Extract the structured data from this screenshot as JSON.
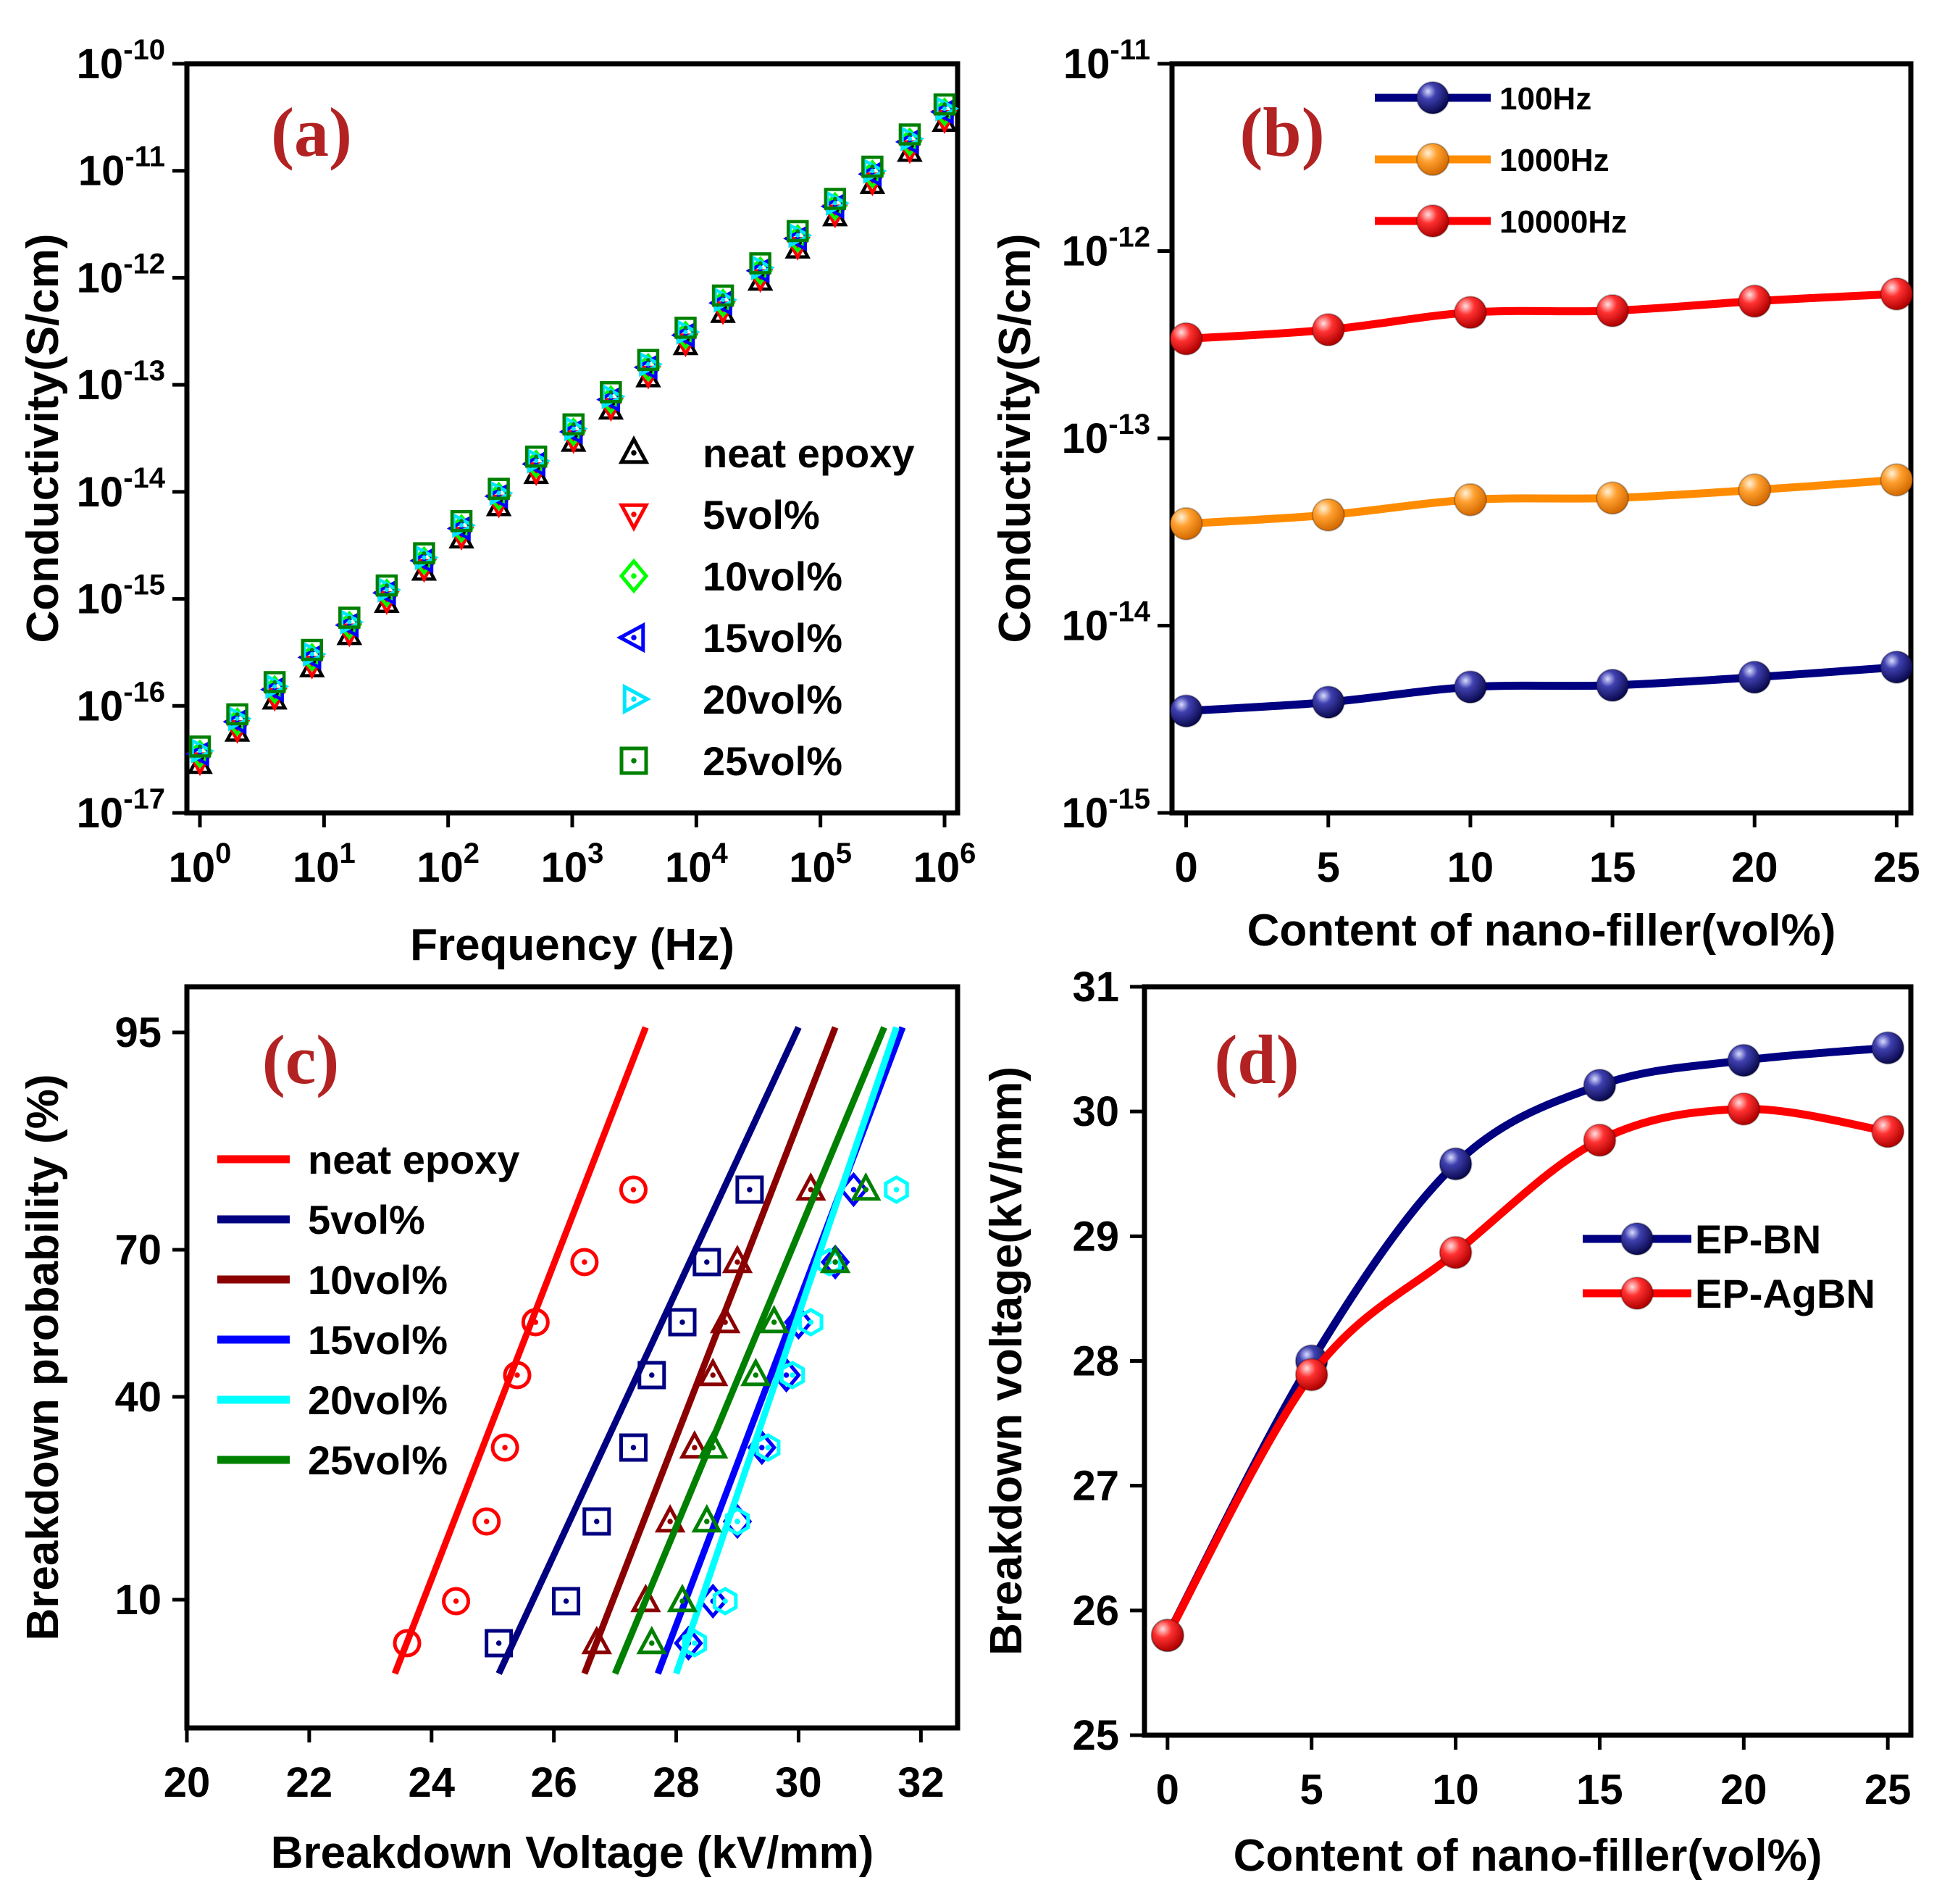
{
  "chart_data": [
    {
      "type": "scatter",
      "panel_label": "(a)",
      "xlabel": "Frequency (Hz)",
      "ylabel": "Conductivity(S/cm)",
      "xscale": "log",
      "yscale": "log",
      "xlim": [
        1,
        1000000
      ],
      "ylim": [
        1e-17,
        1e-10
      ],
      "xticks": [
        {
          "base": "10",
          "exp": "0"
        },
        {
          "base": "10",
          "exp": "1"
        },
        {
          "base": "10",
          "exp": "2"
        },
        {
          "base": "10",
          "exp": "3"
        },
        {
          "base": "10",
          "exp": "4"
        },
        {
          "base": "10",
          "exp": "5"
        },
        {
          "base": "10",
          "exp": "6"
        }
      ],
      "yticks": [
        {
          "base": "10",
          "exp": "-10"
        },
        {
          "base": "10",
          "exp": "-11"
        },
        {
          "base": "10",
          "exp": "-12"
        },
        {
          "base": "10",
          "exp": "-13"
        },
        {
          "base": "10",
          "exp": "-14"
        },
        {
          "base": "10",
          "exp": "-15"
        },
        {
          "base": "10",
          "exp": "-16"
        },
        {
          "base": "10",
          "exp": "-17"
        }
      ],
      "legend_position": "right",
      "x": [
        1,
        2,
        4,
        8,
        16,
        32,
        64,
        128,
        256,
        512,
        1024,
        2048,
        4096,
        8192,
        16384,
        32768,
        65536,
        131072,
        262144,
        524288,
        1000000
      ],
      "series": [
        {
          "name": "neat epoxy",
          "marker": "triangle-up",
          "color": "#000000",
          "log10_sigma_at_1Hz": -16.55
        },
        {
          "name": "5vol%",
          "marker": "triangle-down",
          "color": "#ff0000",
          "log10_sigma_at_1Hz": -16.52
        },
        {
          "name": "10vol%",
          "marker": "diamond",
          "color": "#00ff00",
          "log10_sigma_at_1Hz": -16.45
        },
        {
          "name": "15vol%",
          "marker": "triangle-left",
          "color": "#0000ff",
          "log10_sigma_at_1Hz": -16.45
        },
        {
          "name": "20vol%",
          "marker": "triangle-right",
          "color": "#00e5ff",
          "log10_sigma_at_1Hz": -16.42
        },
        {
          "name": "25vol%",
          "marker": "square",
          "color": "#008000",
          "log10_sigma_at_1Hz": -16.38
        }
      ],
      "note_slope": 1.0
    },
    {
      "type": "line",
      "panel_label": "(b)",
      "xlabel": "Content of nano-filler(vol%)",
      "ylabel": "Conductivity(S/cm)",
      "yscale": "log",
      "xlim": [
        -0.5,
        25.5
      ],
      "ylim": [
        1e-15,
        1e-11
      ],
      "xticks": [
        "0",
        "5",
        "10",
        "15",
        "20",
        "25"
      ],
      "yticks": [
        {
          "base": "10",
          "exp": "-11"
        },
        {
          "base": "10",
          "exp": "-12"
        },
        {
          "base": "10",
          "exp": "-13"
        },
        {
          "base": "10",
          "exp": "-14"
        },
        {
          "base": "10",
          "exp": "-15"
        }
      ],
      "legend_position": "top-left",
      "x": [
        0,
        5,
        10,
        15,
        20,
        25
      ],
      "series": [
        {
          "name": "100Hz",
          "color": "#000080",
          "values": [
            3.5e-15,
            3.9e-15,
            4.7e-15,
            4.8e-15,
            5.3e-15,
            6e-15
          ]
        },
        {
          "name": "1000Hz",
          "color": "#ff8c00",
          "values": [
            3.5e-14,
            3.9e-14,
            4.7e-14,
            4.8e-14,
            5.3e-14,
            6e-14
          ]
        },
        {
          "name": "10000Hz",
          "color": "#ff0000",
          "values": [
            3.4e-13,
            3.8e-13,
            4.7e-13,
            4.8e-13,
            5.4e-13,
            5.9e-13
          ]
        }
      ]
    },
    {
      "type": "scatter",
      "panel_label": "(c)",
      "xlabel": "Breakdown Voltage (kV/mm)",
      "ylabel": "Breakdown probability (%)",
      "xlim": [
        20,
        32.6
      ],
      "xticks": [
        "20",
        "22",
        "24",
        "26",
        "28",
        "30",
        "32"
      ],
      "yticks": [
        "95",
        "70",
        "40",
        "10"
      ],
      "legend_position": "top-left",
      "series": [
        {
          "name": "neat epoxy",
          "color": "#ff0000",
          "marker": "circle",
          "x": [
            23.6,
            24.4,
            24.9,
            25.2,
            25.4,
            25.7,
            26.5,
            27.3
          ],
          "fit_x": [
            23.4,
            27.5
          ]
        },
        {
          "name": "5vol%",
          "color": "#000080",
          "marker": "square",
          "x": [
            25.1,
            26.2,
            26.7,
            27.3,
            27.6,
            28.1,
            28.5,
            29.2
          ],
          "fit_x": [
            25.1,
            30.0
          ]
        },
        {
          "name": "10vol%",
          "color": "#8b0000",
          "marker": "triangle-up",
          "x": [
            26.7,
            27.5,
            27.9,
            28.3,
            28.6,
            28.8,
            29.0,
            30.2
          ],
          "fit_x": [
            26.5,
            30.6
          ]
        },
        {
          "name": "15vol%",
          "color": "#0000ff",
          "marker": "diamond",
          "x": [
            28.2,
            28.6,
            29.0,
            29.4,
            29.8,
            30.0,
            30.6,
            30.9
          ],
          "fit_x": [
            27.7,
            31.7
          ]
        },
        {
          "name": "20vol%",
          "color": "#00ffff",
          "marker": "hexagon",
          "x": [
            28.3,
            28.8,
            29.0,
            29.5,
            29.9,
            30.2,
            30.5,
            31.6
          ],
          "fit_x": [
            28.0,
            31.6
          ]
        },
        {
          "name": "25vol%",
          "color": "#008000",
          "marker": "triangle-up",
          "x": [
            27.6,
            28.1,
            28.5,
            28.6,
            29.3,
            29.6,
            30.6,
            31.1
          ],
          "fit_x": [
            27.0,
            31.4
          ]
        }
      ]
    },
    {
      "type": "line",
      "panel_label": "(d)",
      "xlabel": "Content of nano-filler(vol%)",
      "ylabel": "Breakdown voltage(kV/mm)",
      "xlim": [
        -0.8,
        25.8
      ],
      "ylim": [
        25,
        31
      ],
      "xticks": [
        "0",
        "5",
        "10",
        "15",
        "20",
        "25"
      ],
      "yticks": [
        "25",
        "26",
        "27",
        "28",
        "29",
        "30",
        "31"
      ],
      "legend_position": "right",
      "x": [
        0,
        5,
        10,
        15,
        20,
        25
      ],
      "series": [
        {
          "name": "EP-BN",
          "color": "#000080",
          "values": [
            25.8,
            28.0,
            29.58,
            30.21,
            30.41,
            30.51
          ]
        },
        {
          "name": "EP-AgBN",
          "color": "#ff0000",
          "values": [
            25.8,
            27.89,
            28.87,
            29.77,
            30.02,
            29.84
          ]
        }
      ]
    }
  ]
}
